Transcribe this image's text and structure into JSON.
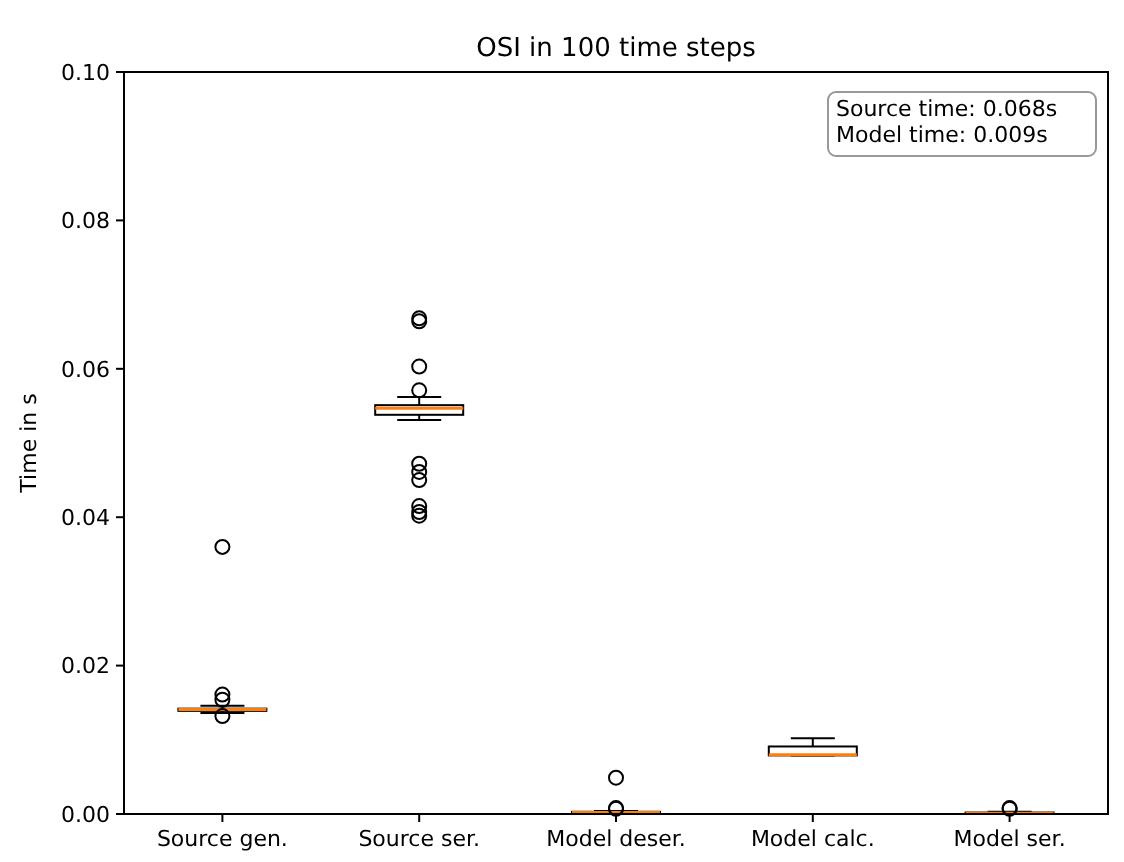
{
  "chart_data": {
    "type": "box",
    "title": "OSI in 100 time steps",
    "ylabel": "Time in s",
    "categories": [
      "Source gen.",
      "Source ser.",
      "Model deser.",
      "Model calc.",
      "Model ser."
    ],
    "boxes": [
      {
        "low": 0.0136,
        "q1": 0.0139,
        "median": 0.0141,
        "q3": 0.0142,
        "high": 0.0146,
        "outliers": [
          0.036,
          0.0161,
          0.0154,
          0.0132
        ]
      },
      {
        "low": 0.0531,
        "q1": 0.0538,
        "median": 0.0547,
        "q3": 0.0551,
        "high": 0.0562,
        "outliers": [
          0.0668,
          0.0664,
          0.0603,
          0.0571,
          0.0472,
          0.0461,
          0.045,
          0.0415,
          0.0407,
          0.0402
        ]
      },
      {
        "low": 0,
        "q1": 0.0001,
        "median": 0.0002,
        "q3": 0.0003,
        "high": 0.0004,
        "outliers": [
          0.0049,
          0.0008,
          0.0007
        ]
      },
      {
        "low": 0.0079,
        "q1": 0.0079,
        "median": 0.008,
        "q3": 0.0091,
        "high": 0.0102
      },
      {
        "low": 0,
        "q1": 0.0001,
        "median": 0.0001,
        "q3": 0.0002,
        "high": 0.0003,
        "outliers": [
          0.0008,
          0.0007
        ]
      }
    ],
    "ylim": [
      0,
      0.1
    ],
    "yticks": [
      {
        "value": 0,
        "label": "0.00"
      },
      {
        "value": 0.02,
        "label": "0.02"
      },
      {
        "value": 0.04,
        "label": "0.04"
      },
      {
        "value": 0.06,
        "label": "0.06"
      },
      {
        "value": 0.08,
        "label": "0.08"
      },
      {
        "value": 0.1,
        "label": "0.10"
      }
    ],
    "annotations": [
      "Source time: 0.068s",
      "Model time: 0.009s"
    ],
    "grid": false
  }
}
